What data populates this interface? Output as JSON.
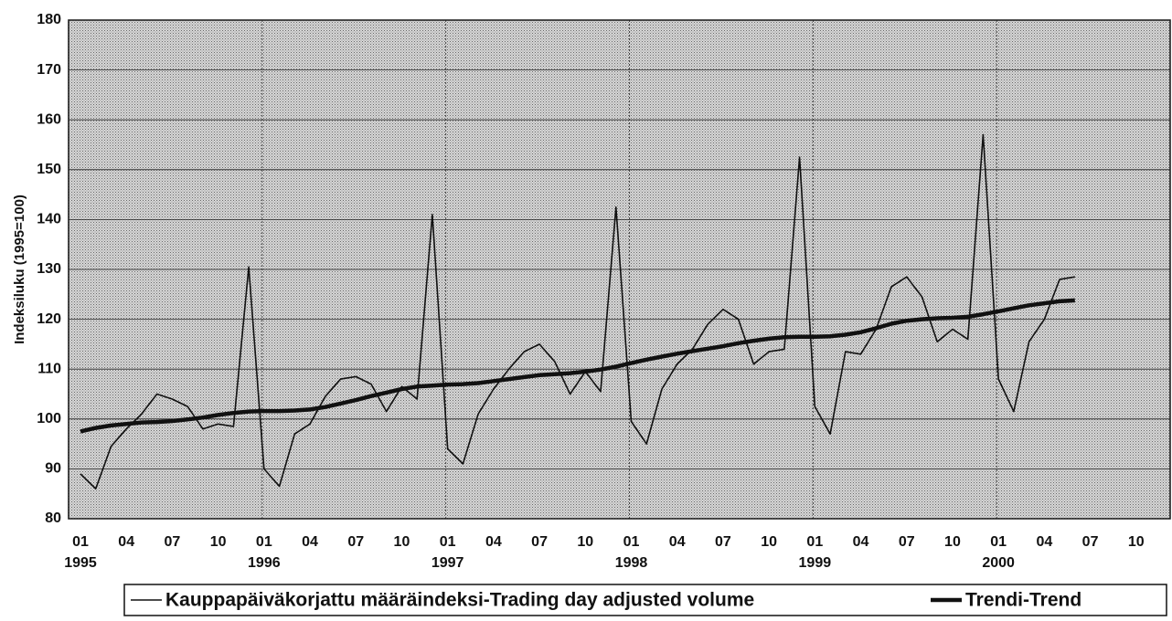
{
  "chart_data": {
    "type": "line",
    "ylabel": "Indeksiluku (1995=100)",
    "categories": [
      "01",
      null,
      null,
      "04",
      null,
      null,
      "07",
      null,
      null,
      "10",
      null,
      null,
      "01",
      null,
      null,
      "04",
      null,
      null,
      "07",
      null,
      null,
      "10",
      null,
      null,
      "01",
      null,
      null,
      "04",
      null,
      null,
      "07",
      null,
      null,
      "10",
      null,
      null,
      "01",
      null,
      null,
      "04",
      null,
      null,
      "07",
      null,
      null,
      "10",
      null,
      null,
      "01",
      null,
      null,
      "04",
      null,
      null,
      "07",
      null,
      null,
      "10",
      null,
      null,
      "01",
      null,
      null,
      "04",
      null,
      null,
      "07",
      null,
      null,
      "10",
      null,
      null
    ],
    "x_years": [
      "1995",
      null,
      null,
      null,
      null,
      null,
      null,
      null,
      null,
      null,
      null,
      null,
      "1996",
      null,
      null,
      null,
      null,
      null,
      null,
      null,
      null,
      null,
      null,
      null,
      "1997",
      null,
      null,
      null,
      null,
      null,
      null,
      null,
      null,
      null,
      null,
      null,
      "1998",
      null,
      null,
      null,
      null,
      null,
      null,
      null,
      null,
      null,
      null,
      null,
      "1999",
      null,
      null,
      null,
      null,
      null,
      null,
      null,
      null,
      null,
      null,
      null,
      "2000",
      null,
      null,
      null,
      null,
      null,
      null,
      null,
      null,
      null,
      null,
      null
    ],
    "series": [
      {
        "name": "Kauppapäiväkorjattu määräindeksi-Trading day adjusted volume",
        "color": "#111111",
        "values": [
          89,
          86,
          94.5,
          98,
          101,
          105,
          104,
          102.5,
          98,
          99,
          98.5,
          130.5,
          90,
          86.5,
          97,
          99,
          104.5,
          108,
          108.5,
          107,
          101.5,
          106.5,
          104,
          141,
          94,
          91,
          101,
          106,
          110,
          113.5,
          115,
          111.5,
          105,
          109.5,
          105.5,
          142.5,
          99.5,
          95,
          106,
          111,
          114,
          119,
          122,
          120,
          111,
          113.5,
          114,
          152.5,
          102.5,
          97,
          113.5,
          113,
          118,
          126.5,
          128.5,
          124.5,
          115.5,
          118,
          116,
          157,
          108,
          101.5,
          115.5,
          120,
          128,
          128.5,
          null,
          null,
          null,
          null,
          null,
          null
        ]
      },
      {
        "name": "Trendi-Trend",
        "color": "#111111",
        "values": [
          97.5,
          98.2,
          98.7,
          99,
          99.3,
          99.4,
          99.6,
          99.9,
          100.3,
          100.8,
          101.2,
          101.5,
          101.6,
          101.6,
          101.7,
          101.9,
          102.4,
          103.1,
          103.8,
          104.6,
          105.3,
          106,
          106.5,
          106.7,
          106.9,
          107,
          107.2,
          107.6,
          108,
          108.4,
          108.8,
          109,
          109.2,
          109.5,
          109.9,
          110.5,
          111.2,
          111.9,
          112.5,
          113.1,
          113.6,
          114.1,
          114.6,
          115.2,
          115.7,
          116.1,
          116.4,
          116.5,
          116.5,
          116.6,
          116.9,
          117.4,
          118.2,
          119.1,
          119.7,
          120,
          120.2,
          120.3,
          120.5,
          121,
          121.6,
          122.2,
          122.8,
          123.2,
          123.6,
          123.8,
          null,
          null,
          null,
          null,
          null,
          null
        ]
      }
    ],
    "ylim": [
      80,
      180
    ],
    "yticks": [
      80,
      90,
      100,
      110,
      120,
      130,
      140,
      150,
      160,
      170,
      180
    ],
    "grid": true,
    "legend": "bottom"
  }
}
